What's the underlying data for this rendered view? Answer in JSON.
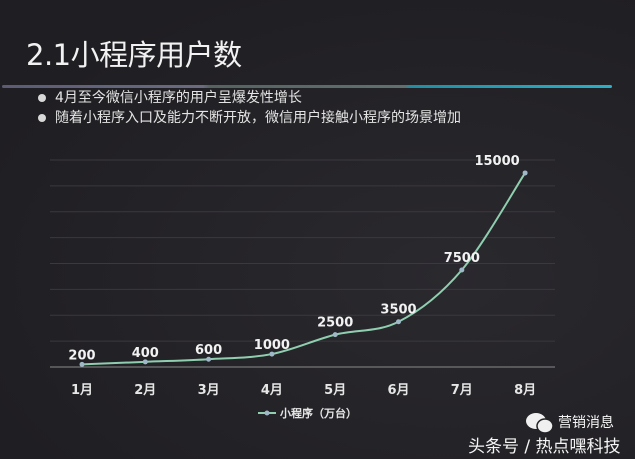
{
  "slide": {
    "title": "2.1小程序用户数",
    "bullets": [
      "4月至今微信小程序的用户呈爆发性增长",
      "随着小程序入口及能力不断开放，微信用户接触小程序的场景增加"
    ]
  },
  "chart_data": {
    "type": "line",
    "title": "",
    "xlabel": "",
    "ylabel": "",
    "categories": [
      "1月",
      "2月",
      "3月",
      "4月",
      "5月",
      "6月",
      "7月",
      "8月"
    ],
    "series": [
      {
        "name": "小程序（万台）",
        "values": [
          200,
          400,
          600,
          1000,
          2500,
          3500,
          7500,
          15000
        ],
        "color": "#8fcfb0"
      }
    ],
    "data_labels": [
      "200",
      "400",
      "600",
      "1000",
      "2500",
      "3500",
      "7500",
      "15000"
    ],
    "ylim": [
      0,
      16000
    ],
    "grid": true,
    "legend": "bottom",
    "line_style": "smooth"
  },
  "watermark": {
    "brand": "营销消息",
    "source": "头条号 / 热点嘿科技",
    "icon": "wechat-icon"
  },
  "colors": {
    "background": "#232226",
    "accent": "#2ab0c8",
    "line": "#8fcfb0"
  }
}
